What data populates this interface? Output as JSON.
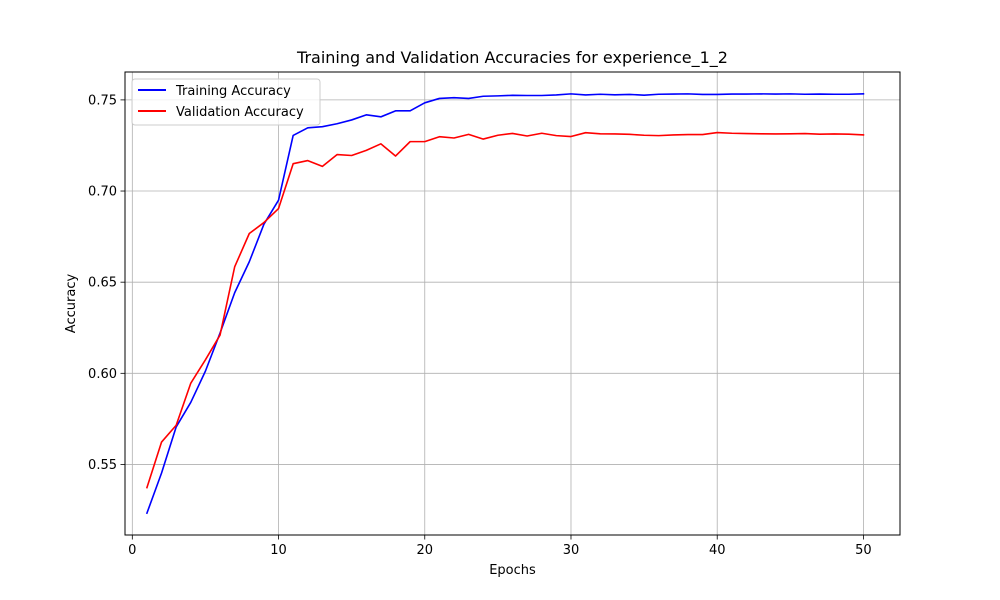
{
  "chart_data": {
    "type": "line",
    "title": "Training and Validation Accuracies for experience_1_2",
    "xlabel": "Epochs",
    "ylabel": "Accuracy",
    "xlim": [
      -0.5,
      52.5
    ],
    "ylim": [
      0.5113,
      0.7653
    ],
    "xticks": [
      0,
      10,
      20,
      30,
      40,
      50
    ],
    "yticks": [
      0.55,
      0.6,
      0.65,
      0.7,
      0.75
    ],
    "ytick_labels": [
      "0.55",
      "0.60",
      "0.65",
      "0.70",
      "0.75"
    ],
    "grid": true,
    "legend_position": "upper-left",
    "x": [
      1,
      2,
      3,
      4,
      5,
      6,
      7,
      8,
      9,
      10,
      11,
      12,
      13,
      14,
      15,
      16,
      17,
      18,
      19,
      20,
      21,
      22,
      23,
      24,
      25,
      26,
      27,
      28,
      29,
      30,
      31,
      32,
      33,
      34,
      35,
      36,
      37,
      38,
      39,
      40,
      41,
      42,
      43,
      44,
      45,
      46,
      47,
      48,
      49,
      50
    ],
    "series": [
      {
        "name": "Training Accuracy",
        "color": "#0000ff",
        "values": [
          0.5233,
          0.5453,
          0.5706,
          0.5841,
          0.6012,
          0.6221,
          0.6442,
          0.6612,
          0.6818,
          0.695,
          0.7305,
          0.7347,
          0.7353,
          0.7369,
          0.739,
          0.7418,
          0.7407,
          0.744,
          0.744,
          0.7484,
          0.7508,
          0.7512,
          0.7508,
          0.752,
          0.7522,
          0.7525,
          0.7524,
          0.7524,
          0.7527,
          0.7533,
          0.7527,
          0.7531,
          0.7528,
          0.753,
          0.7526,
          0.7531,
          0.7532,
          0.7533,
          0.753,
          0.753,
          0.7532,
          0.7532,
          0.7533,
          0.7532,
          0.7533,
          0.7531,
          0.7532,
          0.7531,
          0.7531,
          0.7533
        ]
      },
      {
        "name": "Validation Accuracy",
        "color": "#ff0000",
        "values": [
          0.5373,
          0.5623,
          0.5715,
          0.5946,
          0.6074,
          0.621,
          0.6584,
          0.6767,
          0.6827,
          0.6904,
          0.715,
          0.7167,
          0.7135,
          0.72,
          0.7195,
          0.7223,
          0.7259,
          0.7192,
          0.7271,
          0.7271,
          0.7298,
          0.7291,
          0.7311,
          0.7285,
          0.7306,
          0.7316,
          0.7302,
          0.7317,
          0.7304,
          0.7299,
          0.732,
          0.7314,
          0.7313,
          0.7311,
          0.7306,
          0.7304,
          0.7308,
          0.731,
          0.731,
          0.7321,
          0.7317,
          0.7315,
          0.7314,
          0.7313,
          0.7314,
          0.7315,
          0.7312,
          0.7313,
          0.7312,
          0.7308
        ]
      }
    ]
  }
}
